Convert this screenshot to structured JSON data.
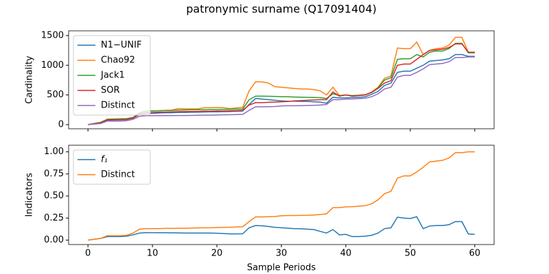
{
  "title": "patronymic surname (Q17091404)",
  "chart_data": [
    {
      "type": "line",
      "ylabel": "Cardinality",
      "legend": "upper left",
      "xlim": [
        -3,
        63
      ],
      "xticks": [
        0,
        10,
        20,
        30,
        40,
        50,
        60
      ],
      "xticklabels": false,
      "ylim": [
        -70,
        1580
      ],
      "yticks": [
        0,
        500,
        1000,
        1500
      ],
      "x": [
        0,
        1,
        2,
        3,
        4,
        5,
        6,
        7,
        8,
        9,
        10,
        11,
        12,
        13,
        14,
        15,
        16,
        17,
        18,
        19,
        20,
        21,
        22,
        23,
        24,
        25,
        26,
        27,
        28,
        29,
        30,
        31,
        32,
        33,
        34,
        35,
        36,
        37,
        38,
        39,
        40,
        41,
        42,
        43,
        44,
        45,
        46,
        47,
        48,
        49,
        50,
        51,
        52,
        53,
        54,
        55,
        56,
        57,
        58,
        59,
        60
      ],
      "series": [
        {
          "name": "N1−UNIF",
          "color": "#1f77b4",
          "values": [
            0,
            12,
            25,
            75,
            78,
            80,
            85,
            110,
            170,
            185,
            190,
            195,
            200,
            200,
            205,
            205,
            208,
            210,
            212,
            215,
            215,
            218,
            220,
            225,
            228,
            340,
            440,
            430,
            420,
            410,
            400,
            395,
            395,
            392,
            390,
            385,
            380,
            360,
            460,
            450,
            450,
            455,
            460,
            470,
            510,
            560,
            660,
            700,
            880,
            900,
            900,
            950,
            1000,
            1070,
            1080,
            1090,
            1110,
            1180,
            1180,
            1150,
            1150
          ]
        },
        {
          "name": "Chao92",
          "color": "#ff7f0e",
          "values": [
            0,
            20,
            40,
            90,
            95,
            100,
            100,
            120,
            200,
            220,
            230,
            235,
            240,
            245,
            270,
            265,
            265,
            265,
            285,
            285,
            288,
            285,
            270,
            280,
            290,
            570,
            720,
            720,
            700,
            640,
            630,
            620,
            610,
            600,
            600,
            590,
            570,
            500,
            630,
            490,
            500,
            480,
            490,
            500,
            550,
            630,
            780,
            820,
            1290,
            1280,
            1280,
            1390,
            1180,
            1250,
            1280,
            1290,
            1340,
            1470,
            1470,
            1220,
            1220
          ]
        },
        {
          "name": "Jack1",
          "color": "#2ca02c",
          "values": [
            0,
            20,
            40,
            90,
            95,
            95,
            100,
            120,
            200,
            230,
            232,
            235,
            238,
            240,
            245,
            248,
            250,
            250,
            252,
            255,
            255,
            258,
            258,
            260,
            262,
            420,
            480,
            480,
            478,
            475,
            470,
            470,
            465,
            462,
            460,
            458,
            455,
            440,
            520,
            490,
            500,
            490,
            495,
            505,
            540,
            620,
            750,
            790,
            1100,
            1110,
            1110,
            1180,
            1140,
            1220,
            1240,
            1240,
            1280,
            1370,
            1370,
            1210,
            1210
          ]
        },
        {
          "name": "SOR",
          "color": "#d62728",
          "values": [
            0,
            15,
            30,
            80,
            85,
            85,
            90,
            110,
            180,
            200,
            205,
            210,
            212,
            215,
            218,
            220,
            222,
            222,
            225,
            225,
            228,
            230,
            232,
            235,
            240,
            330,
            370,
            370,
            375,
            380,
            385,
            390,
            400,
            405,
            410,
            415,
            420,
            420,
            550,
            480,
            500,
            480,
            490,
            500,
            540,
            610,
            700,
            740,
            1000,
            1020,
            1020,
            1100,
            1180,
            1250,
            1260,
            1270,
            1300,
            1360,
            1360,
            1220,
            1220
          ]
        },
        {
          "name": "Distinct",
          "color": "#9467bd",
          "values": [
            0,
            10,
            20,
            60,
            60,
            60,
            65,
            90,
            140,
            150,
            150,
            150,
            152,
            152,
            153,
            153,
            155,
            158,
            160,
            160,
            162,
            165,
            167,
            170,
            172,
            240,
            300,
            300,
            302,
            305,
            315,
            318,
            318,
            320,
            322,
            325,
            330,
            340,
            420,
            420,
            430,
            432,
            438,
            445,
            470,
            520,
            600,
            630,
            800,
            830,
            830,
            880,
            940,
            1010,
            1020,
            1030,
            1060,
            1130,
            1130,
            1140,
            1140
          ]
        }
      ]
    },
    {
      "type": "line",
      "ylabel": "Indicators",
      "xlabel": "Sample Periods",
      "legend": "upper left",
      "xlim": [
        -3,
        63
      ],
      "xticks": [
        0,
        10,
        20,
        30,
        40,
        50,
        60
      ],
      "xticklabels": true,
      "ylim": [
        -0.05,
        1.075
      ],
      "yticks": [
        {
          "value": 0,
          "label": "0.00"
        },
        {
          "value": 0.25,
          "label": "0.25"
        },
        {
          "value": 0.5,
          "label": "0.50"
        },
        {
          "value": 0.75,
          "label": "0.75"
        },
        {
          "value": 1,
          "label": "1.00"
        }
      ],
      "x": [
        0,
        1,
        2,
        3,
        4,
        5,
        6,
        7,
        8,
        9,
        10,
        11,
        12,
        13,
        14,
        15,
        16,
        17,
        18,
        19,
        20,
        21,
        22,
        23,
        24,
        25,
        26,
        27,
        28,
        29,
        30,
        31,
        32,
        33,
        34,
        35,
        36,
        37,
        38,
        39,
        40,
        41,
        42,
        43,
        44,
        45,
        46,
        47,
        48,
        49,
        50,
        51,
        52,
        53,
        54,
        55,
        56,
        57,
        58,
        59,
        60
      ],
      "series": [
        {
          "name": "f₁",
          "color": "#1f77b4",
          "values": [
            0,
            0.01,
            0.02,
            0.04,
            0.04,
            0.04,
            0.045,
            0.06,
            0.08,
            0.085,
            0.085,
            0.084,
            0.084,
            0.083,
            0.082,
            0.08,
            0.08,
            0.08,
            0.08,
            0.08,
            0.078,
            0.075,
            0.07,
            0.07,
            0.072,
            0.14,
            0.165,
            0.162,
            0.155,
            0.145,
            0.14,
            0.135,
            0.13,
            0.128,
            0.125,
            0.12,
            0.1,
            0.08,
            0.12,
            0.06,
            0.065,
            0.04,
            0.04,
            0.045,
            0.055,
            0.08,
            0.13,
            0.14,
            0.26,
            0.25,
            0.245,
            0.265,
            0.13,
            0.16,
            0.165,
            0.165,
            0.175,
            0.21,
            0.21,
            0.07,
            0.065
          ]
        },
        {
          "name": "Distinct",
          "color": "#ff7f0e",
          "values": [
            0,
            0.01,
            0.02,
            0.05,
            0.05,
            0.05,
            0.055,
            0.08,
            0.125,
            0.13,
            0.13,
            0.13,
            0.133,
            0.133,
            0.134,
            0.134,
            0.136,
            0.139,
            0.14,
            0.14,
            0.142,
            0.145,
            0.146,
            0.149,
            0.151,
            0.21,
            0.263,
            0.263,
            0.265,
            0.268,
            0.276,
            0.279,
            0.279,
            0.281,
            0.282,
            0.285,
            0.289,
            0.298,
            0.368,
            0.368,
            0.377,
            0.379,
            0.384,
            0.39,
            0.412,
            0.456,
            0.526,
            0.553,
            0.702,
            0.728,
            0.728,
            0.772,
            0.825,
            0.886,
            0.895,
            0.904,
            0.93,
            0.991,
            0.991,
            1.0,
            1.0
          ]
        }
      ]
    }
  ]
}
